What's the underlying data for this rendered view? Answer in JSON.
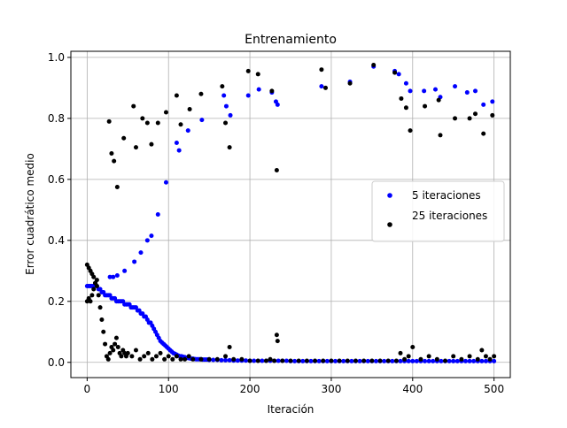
{
  "chart_data": {
    "type": "scatter",
    "title": "Entrenamiento",
    "xlabel": "Iteración",
    "ylabel": "Error cuadrático medio",
    "xlim": [
      -20,
      520
    ],
    "ylim": [
      -0.05,
      1.02
    ],
    "xticks": [
      0,
      100,
      200,
      300,
      400,
      500
    ],
    "yticks": [
      0.0,
      0.2,
      0.4,
      0.6,
      0.8,
      1.0
    ],
    "xtick_labels": [
      "0",
      "100",
      "200",
      "300",
      "400",
      "500"
    ],
    "ytick_labels": [
      "0.0",
      "0.2",
      "0.4",
      "0.6",
      "0.8",
      "1.0"
    ],
    "grid": true,
    "legend_position": "center-right",
    "series": [
      {
        "name": "5 iteraciones",
        "color": "#0000ff",
        "x": [
          0,
          2,
          4,
          6,
          8,
          10,
          12,
          14,
          16,
          18,
          20,
          22,
          24,
          26,
          28,
          30,
          32,
          34,
          36,
          38,
          40,
          42,
          44,
          46,
          48,
          50,
          52,
          54,
          56,
          58,
          60,
          62,
          64,
          66,
          68,
          70,
          72,
          74,
          76,
          78,
          80,
          82,
          84,
          86,
          88,
          90,
          92,
          94,
          96,
          98,
          100,
          102,
          104,
          106,
          108,
          110,
          112,
          114,
          116,
          118,
          120,
          122,
          124,
          126,
          128,
          130,
          132,
          134,
          136,
          138,
          140,
          142,
          144,
          146,
          148,
          150,
          155,
          160,
          165,
          170,
          175,
          180,
          185,
          190,
          195,
          200,
          205,
          210,
          215,
          220,
          225,
          230,
          235,
          240,
          245,
          250,
          255,
          260,
          265,
          270,
          275,
          280,
          285,
          290,
          295,
          300,
          305,
          310,
          315,
          320,
          325,
          330,
          335,
          340,
          345,
          350,
          355,
          360,
          365,
          370,
          375,
          380,
          385,
          390,
          395,
          400,
          405,
          410,
          415,
          420,
          425,
          430,
          435,
          440,
          445,
          450,
          455,
          460,
          465,
          470,
          475,
          480,
          485,
          490,
          495,
          500,
          28,
          32,
          37,
          46,
          58,
          66,
          74,
          79,
          87,
          97,
          110,
          113,
          124,
          141,
          168,
          171,
          176,
          198,
          211,
          227,
          232,
          234,
          288,
          323,
          352,
          378,
          383,
          392,
          397,
          414,
          428,
          434,
          452,
          467,
          477,
          487,
          498
        ],
        "y": [
          0.25,
          0.25,
          0.25,
          0.25,
          0.25,
          0.26,
          0.25,
          0.24,
          0.24,
          0.23,
          0.23,
          0.22,
          0.22,
          0.22,
          0.22,
          0.21,
          0.21,
          0.21,
          0.2,
          0.2,
          0.2,
          0.2,
          0.2,
          0.19,
          0.19,
          0.19,
          0.19,
          0.18,
          0.18,
          0.18,
          0.18,
          0.17,
          0.17,
          0.16,
          0.16,
          0.15,
          0.15,
          0.14,
          0.13,
          0.13,
          0.12,
          0.11,
          0.1,
          0.09,
          0.08,
          0.07,
          0.065,
          0.06,
          0.055,
          0.05,
          0.045,
          0.04,
          0.035,
          0.03,
          0.028,
          0.025,
          0.022,
          0.02,
          0.02,
          0.018,
          0.017,
          0.015,
          0.014,
          0.013,
          0.012,
          0.012,
          0.011,
          0.01,
          0.01,
          0.01,
          0.01,
          0.009,
          0.009,
          0.009,
          0.009,
          0.008,
          0.008,
          0.008,
          0.007,
          0.007,
          0.007,
          0.006,
          0.006,
          0.006,
          0.006,
          0.005,
          0.005,
          0.005,
          0.005,
          0.005,
          0.005,
          0.005,
          0.005,
          0.005,
          0.005,
          0.004,
          0.004,
          0.004,
          0.004,
          0.004,
          0.004,
          0.004,
          0.004,
          0.004,
          0.004,
          0.004,
          0.004,
          0.004,
          0.004,
          0.004,
          0.004,
          0.004,
          0.004,
          0.004,
          0.004,
          0.004,
          0.004,
          0.004,
          0.004,
          0.004,
          0.004,
          0.004,
          0.004,
          0.004,
          0.004,
          0.004,
          0.004,
          0.004,
          0.004,
          0.004,
          0.004,
          0.004,
          0.004,
          0.004,
          0.004,
          0.004,
          0.004,
          0.004,
          0.004,
          0.004,
          0.004,
          0.004,
          0.004,
          0.004,
          0.004,
          0.004,
          0.28,
          0.28,
          0.285,
          0.3,
          0.33,
          0.36,
          0.4,
          0.415,
          0.485,
          0.59,
          0.72,
          0.695,
          0.76,
          0.795,
          0.875,
          0.84,
          0.81,
          0.875,
          0.895,
          0.885,
          0.855,
          0.845,
          0.905,
          0.92,
          0.97,
          0.955,
          0.945,
          0.915,
          0.89,
          0.89,
          0.895,
          0.87,
          0.905,
          0.885,
          0.89,
          0.845,
          0.855
        ]
      },
      {
        "name": "25 iteraciones",
        "color": "#000000",
        "x": [
          0,
          2,
          4,
          6,
          8,
          10,
          12,
          14,
          16,
          18,
          20,
          22,
          24,
          26,
          28,
          30,
          32,
          34,
          36,
          38,
          40,
          42,
          44,
          46,
          48,
          50,
          55,
          60,
          65,
          70,
          75,
          80,
          85,
          90,
          95,
          100,
          105,
          110,
          115,
          120,
          125,
          130,
          140,
          150,
          160,
          170,
          175,
          180,
          190,
          200,
          210,
          220,
          225,
          230,
          233,
          234,
          240,
          250,
          260,
          270,
          280,
          290,
          300,
          310,
          320,
          330,
          340,
          350,
          360,
          370,
          380,
          385,
          390,
          395,
          400,
          410,
          420,
          430,
          440,
          450,
          460,
          470,
          480,
          485,
          490,
          495,
          500,
          0,
          2,
          4,
          6,
          8,
          10,
          12,
          27,
          30,
          33,
          37,
          45,
          57,
          60,
          68,
          74,
          79,
          87,
          97,
          110,
          115,
          126,
          140,
          166,
          170,
          175,
          198,
          210,
          227,
          233,
          288,
          293,
          323,
          352,
          378,
          386,
          392,
          397,
          415,
          432,
          434,
          452,
          470,
          477,
          487,
          498
        ],
        "y": [
          0.32,
          0.31,
          0.3,
          0.29,
          0.28,
          0.26,
          0.25,
          0.22,
          0.18,
          0.14,
          0.1,
          0.06,
          0.02,
          0.01,
          0.03,
          0.05,
          0.04,
          0.06,
          0.08,
          0.05,
          0.03,
          0.02,
          0.04,
          0.03,
          0.02,
          0.03,
          0.02,
          0.04,
          0.01,
          0.02,
          0.03,
          0.01,
          0.02,
          0.03,
          0.01,
          0.02,
          0.01,
          0.02,
          0.01,
          0.01,
          0.02,
          0.01,
          0.01,
          0.01,
          0.01,
          0.02,
          0.05,
          0.01,
          0.01,
          0.005,
          0.005,
          0.005,
          0.01,
          0.005,
          0.09,
          0.07,
          0.005,
          0.005,
          0.005,
          0.005,
          0.005,
          0.005,
          0.005,
          0.005,
          0.005,
          0.005,
          0.005,
          0.005,
          0.005,
          0.005,
          0.005,
          0.03,
          0.01,
          0.02,
          0.05,
          0.01,
          0.02,
          0.01,
          0.005,
          0.02,
          0.01,
          0.02,
          0.01,
          0.04,
          0.02,
          0.01,
          0.02,
          0.2,
          0.21,
          0.2,
          0.22,
          0.24,
          0.26,
          0.27,
          0.79,
          0.685,
          0.66,
          0.575,
          0.735,
          0.84,
          0.705,
          0.8,
          0.785,
          0.715,
          0.785,
          0.82,
          0.875,
          0.78,
          0.83,
          0.88,
          0.905,
          0.785,
          0.705,
          0.955,
          0.945,
          0.89,
          0.63,
          0.96,
          0.9,
          0.915,
          0.975,
          0.95,
          0.865,
          0.835,
          0.76,
          0.84,
          0.86,
          0.745,
          0.8,
          0.8,
          0.815,
          0.75,
          0.81
        ]
      }
    ]
  }
}
